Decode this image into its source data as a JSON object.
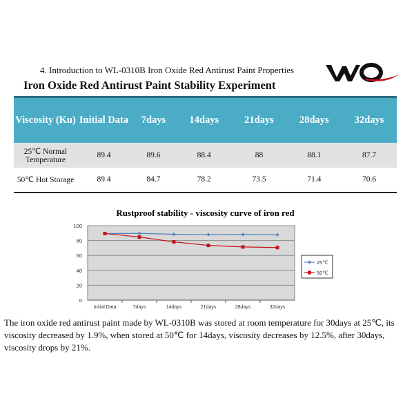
{
  "header": {
    "intro": "4.  Introduction to WL-0310B Iron Oxide Red Antirust Paint Properties",
    "title": "Iron  Oxide  Red Antirust  Paint Stability  Experiment",
    "logo_text": "WQ"
  },
  "table": {
    "headers": [
      "Viscosity (Ku)",
      "Initial Data",
      "7days",
      "14days",
      "21days",
      "28days",
      "32days"
    ],
    "rows": [
      {
        "label": "25℃ Normal Temperature",
        "values": [
          "89.4",
          "89.6",
          "88.4",
          "88",
          "88.1",
          "87.7"
        ]
      },
      {
        "label": "50℃ Hot Storage",
        "values": [
          "89.4",
          "84.7",
          "78.2",
          "73.5",
          "71.4",
          "70.6"
        ]
      }
    ]
  },
  "chart_data": {
    "type": "line",
    "title": "Rustproof stability - viscosity curve of iron red",
    "categories": [
      "Initial Data",
      "7days",
      "14days",
      "21days",
      "28days",
      "32days"
    ],
    "series": [
      {
        "name": "25℃",
        "values": [
          89.4,
          89.6,
          88.4,
          88,
          88.1,
          87.7
        ],
        "color": "#4f81bd"
      },
      {
        "name": "50℃",
        "values": [
          89.4,
          84.7,
          78.2,
          73.5,
          71.4,
          70.6
        ],
        "color": "#c0161b"
      }
    ],
    "ylim": [
      0,
      100
    ],
    "yticks": [
      0,
      20,
      40,
      60,
      80,
      100
    ],
    "grid": true,
    "legend": "right",
    "plot_bg": "#d9d9d9"
  },
  "paragraph": "The iron oxide red antirust paint made by WL-0310B was stored at room temperature for 30days at 25℃, its viscosity decreased by 1.9%, when stored at 50℃ for 14days, viscosity decreases by 12.5%, after 30days, viscosity drops by 21%."
}
